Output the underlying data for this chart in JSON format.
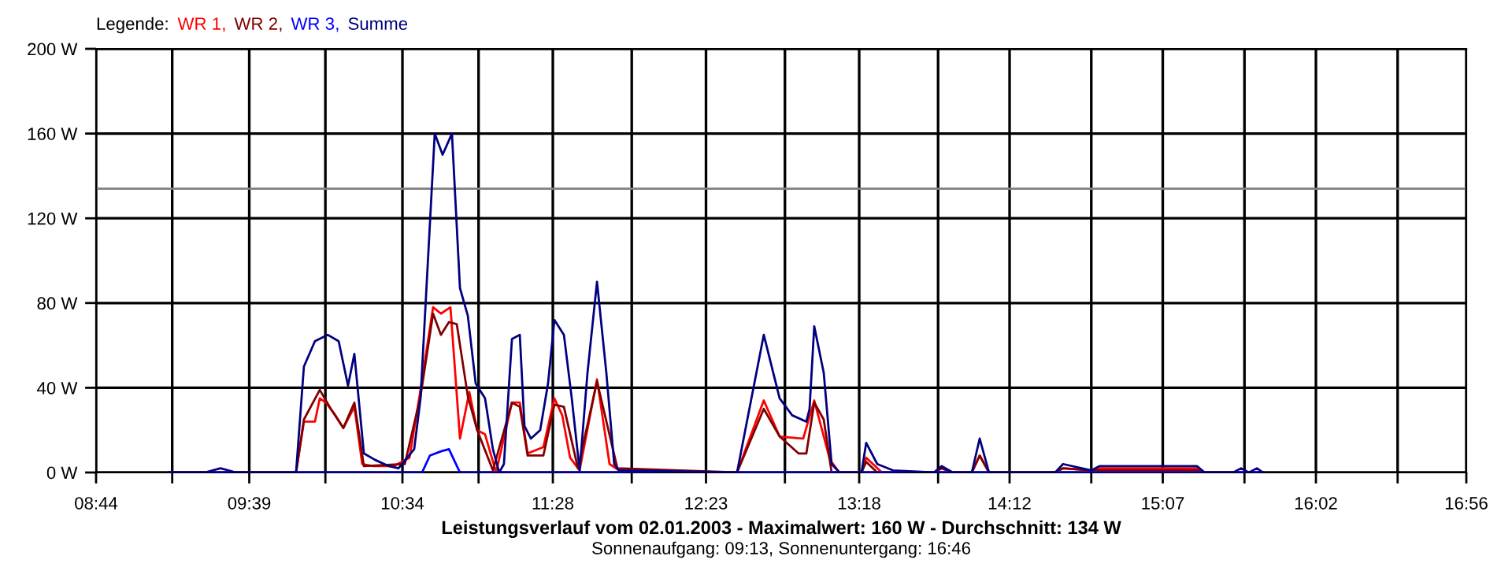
{
  "chart_data": {
    "type": "line",
    "title": "Leistungsverlauf vom 02.01.2003 - Maximalwert: 160 W - Durchschnitt: 134 W",
    "subtitle": "Sonnenaufgang: 09:13, Sonnenuntergang: 16:46",
    "legend_title": "Legende:",
    "annotations": [
      ",",
      ",",
      ","
    ],
    "legend": "top left",
    "grid": true,
    "marker": "none",
    "line_style": "solid",
    "xlim": [
      8.7333,
      16.9333
    ],
    "xticks": [
      {
        "value": 8.7333,
        "label": "08:44"
      },
      {
        "value": 9.1889,
        "label": null
      },
      {
        "value": 9.65,
        "label": "09:39"
      },
      {
        "value": 10.1056,
        "label": null
      },
      {
        "value": 10.5667,
        "label": "10:34"
      },
      {
        "value": 11.0222,
        "label": null
      },
      {
        "value": 11.4667,
        "label": "11:28"
      },
      {
        "value": 11.9389,
        "label": null
      },
      {
        "value": 12.3833,
        "label": "12:23"
      },
      {
        "value": 12.8556,
        "label": null
      },
      {
        "value": 13.3,
        "label": "13:18"
      },
      {
        "value": 13.7722,
        "label": null
      },
      {
        "value": 14.2,
        "label": "14:12"
      },
      {
        "value": 14.6889,
        "label": null
      },
      {
        "value": 15.1167,
        "label": "15:07"
      },
      {
        "value": 15.6056,
        "label": null
      },
      {
        "value": 16.0333,
        "label": "16:02"
      },
      {
        "value": 16.5222,
        "label": null
      },
      {
        "value": 16.9333,
        "label": "16:56"
      }
    ],
    "ylim": [
      0,
      200
    ],
    "yticks": [
      {
        "value": 0,
        "label": "0 W"
      },
      {
        "value": 40,
        "label": "40 W"
      },
      {
        "value": 80,
        "label": "80 W"
      },
      {
        "value": 120,
        "label": "120 W"
      },
      {
        "value": 160,
        "label": "160 W"
      },
      {
        "value": 200,
        "label": "200 W"
      }
    ],
    "ref_lines": [
      {
        "axis": "y",
        "value": 134,
        "color": "#808080"
      }
    ],
    "series": [
      {
        "name": "WR 1",
        "color": "#ff0000",
        "x": [
          9.167,
          9.93,
          9.977,
          10.043,
          10.072,
          10.109,
          10.166,
          10.213,
          10.279,
          10.326,
          10.392,
          10.515,
          10.609,
          10.675,
          10.75,
          10.797,
          10.854,
          10.911,
          10.967,
          11.014,
          11.061,
          11.127,
          11.222,
          11.269,
          11.316,
          11.41,
          11.476,
          11.523,
          11.57,
          11.627,
          11.731,
          11.806,
          11.863,
          12.569,
          12.729,
          12.824,
          12.965,
          13.031,
          13.125,
          13.182,
          13.314,
          13.342,
          13.436,
          13.747,
          13.794,
          13.86,
          13.974,
          14.021,
          14.077,
          14.473,
          14.52,
          14.69,
          14.737,
          15.321,
          15.368,
          15.717
        ],
        "values": [
          0,
          0,
          24,
          24,
          35,
          33,
          27,
          21,
          31,
          4,
          3,
          3,
          7,
          39,
          78,
          75,
          78,
          16,
          38,
          20,
          18,
          0,
          33,
          33,
          9,
          12,
          35,
          27,
          7,
          1,
          44,
          4,
          1,
          0,
          34,
          17,
          16,
          34,
          6,
          0,
          0,
          7,
          0,
          0,
          2,
          0,
          0,
          8,
          0,
          0,
          2,
          1,
          2,
          2,
          0,
          0
        ]
      },
      {
        "name": "WR 2",
        "color": "#800000",
        "x": [
          9.167,
          9.93,
          9.977,
          10.072,
          10.138,
          10.213,
          10.279,
          10.336,
          10.581,
          10.675,
          10.75,
          10.797,
          10.845,
          10.892,
          10.958,
          11.014,
          11.108,
          11.222,
          11.269,
          11.316,
          11.41,
          11.476,
          11.533,
          11.617,
          11.731,
          11.853,
          12.569,
          12.729,
          12.824,
          12.937,
          12.984,
          13.031,
          13.088,
          13.135,
          13.314,
          13.342,
          13.408,
          13.747,
          13.794,
          13.86,
          13.974,
          14.021,
          14.077,
          14.473,
          14.52,
          14.69,
          14.737,
          15.321,
          15.368,
          15.717
        ],
        "values": [
          0,
          0,
          25,
          39,
          30,
          21,
          33,
          3,
          4,
          36,
          75,
          65,
          71,
          70,
          36,
          20,
          1,
          33,
          31,
          8,
          8,
          32,
          31,
          2,
          43,
          2,
          0,
          30,
          17,
          9,
          9,
          33,
          25,
          0,
          0,
          5,
          0,
          0,
          2,
          0,
          0,
          8,
          0,
          0,
          2,
          1,
          1,
          1,
          0,
          0
        ]
      },
      {
        "name": "WR 3",
        "color": "#0000ff",
        "x": [
          9.167,
          10.684,
          10.731,
          10.797,
          10.845,
          10.911,
          15.717
        ],
        "values": [
          0,
          0,
          8,
          10,
          11,
          0,
          0
        ]
      },
      {
        "name": "Summe",
        "color": "#000080",
        "x": [
          9.167,
          9.384,
          9.478,
          9.572,
          9.93,
          9.977,
          10.043,
          10.119,
          10.185,
          10.241,
          10.279,
          10.336,
          10.402,
          10.486,
          10.543,
          10.637,
          10.675,
          10.76,
          10.807,
          10.863,
          10.911,
          10.958,
          11.005,
          11.061,
          11.108,
          11.146,
          11.174,
          11.222,
          11.269,
          11.297,
          11.335,
          11.391,
          11.438,
          11.476,
          11.533,
          11.58,
          11.627,
          11.674,
          11.731,
          11.787,
          11.834,
          11.863,
          12.569,
          12.729,
          12.824,
          12.899,
          12.984,
          13.003,
          13.031,
          13.088,
          13.135,
          13.182,
          13.314,
          13.342,
          13.408,
          13.502,
          13.747,
          13.794,
          13.86,
          13.974,
          14.021,
          14.077,
          14.473,
          14.52,
          14.69,
          14.737,
          14.878,
          15.321,
          15.368,
          15.538,
          15.585,
          15.632,
          15.68,
          15.717
        ],
        "values": [
          0,
          0,
          2,
          0,
          0,
          50,
          62,
          65,
          62,
          41,
          56,
          9,
          6,
          3,
          2,
          11,
          35,
          160,
          150,
          160,
          87,
          74,
          42,
          35,
          11,
          0,
          4,
          63,
          65,
          22,
          16,
          20,
          42,
          72,
          65,
          35,
          1,
          47,
          90,
          47,
          4,
          1,
          0,
          65,
          35,
          27,
          24,
          30,
          69,
          47,
          4,
          0,
          0,
          14,
          4,
          1,
          0,
          3,
          0,
          0,
          16,
          0,
          0,
          4,
          1,
          3,
          3,
          3,
          0,
          0,
          2,
          0,
          2,
          0
        ]
      }
    ]
  }
}
